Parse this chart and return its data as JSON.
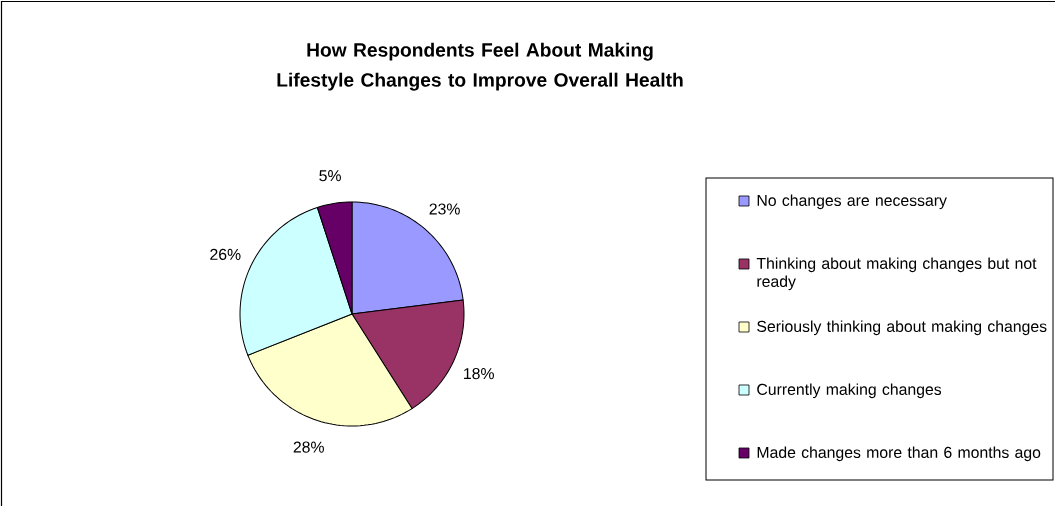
{
  "chart_data": {
    "type": "pie",
    "title": "How Respondents Feel About Making Lifestyle Changes to Improve Overall Health",
    "categories": [
      "No changes are necessary",
      "Thinking about making changes but not ready",
      "Seriously thinking about making changes",
      "Currently making changes",
      "Made changes more than 6 months ago"
    ],
    "values": [
      23,
      18,
      28,
      26,
      5
    ],
    "value_labels": [
      "23%",
      "18%",
      "28%",
      "26%",
      "5%"
    ],
    "colors": [
      "#9999ff",
      "#993366",
      "#ffffcc",
      "#ccffff",
      "#660066"
    ],
    "legend": "right"
  }
}
